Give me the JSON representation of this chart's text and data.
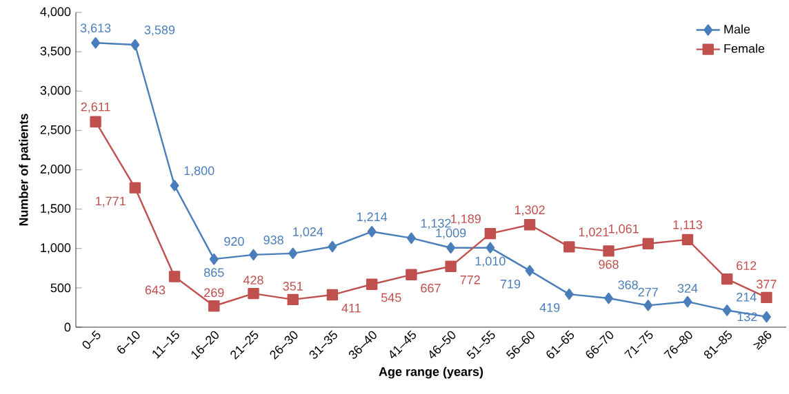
{
  "chart_data": {
    "type": "line",
    "xlabel": "Age range (years)",
    "ylabel": "Number of patients",
    "categories": [
      "0–5",
      "6–10",
      "11–15",
      "16–20",
      "21–25",
      "26–30",
      "31–35",
      "36–40",
      "41–45",
      "46–50",
      "51–55",
      "56–60",
      "61–65",
      "66–70",
      "71–75",
      "76–80",
      "81–85",
      "≥86"
    ],
    "ylim": [
      0,
      4000
    ],
    "yticks": [
      {
        "value": 0,
        "label": "0"
      },
      {
        "value": 500,
        "label": "500"
      },
      {
        "value": 1000,
        "label": "1,000"
      },
      {
        "value": 1500,
        "label": "1,500"
      },
      {
        "value": 2000,
        "label": "2,000"
      },
      {
        "value": 2500,
        "label": "2,500"
      },
      {
        "value": 3000,
        "label": "3,000"
      },
      {
        "value": 3500,
        "label": "3,500"
      },
      {
        "value": 4000,
        "label": "4,000"
      }
    ],
    "grid": false,
    "legend": "top right",
    "line_style": "solid",
    "series": [
      {
        "name": "Male",
        "color": "#4a7ebb",
        "marker": "diamond",
        "values": [
          3613,
          3589,
          1800,
          865,
          920,
          938,
          1024,
          1214,
          1132,
          1009,
          1010,
          719,
          419,
          368,
          277,
          324,
          214,
          132
        ],
        "value_labels": [
          "3,613",
          "3,589",
          "1,800",
          "865",
          "920",
          "938",
          "1,024",
          "1,214",
          "1,132",
          "1,009",
          "1,010",
          "719",
          "419",
          "368",
          "277",
          "324",
          "214",
          "132"
        ]
      },
      {
        "name": "Female",
        "color": "#c0504d",
        "marker": "square",
        "values": [
          2611,
          1771,
          643,
          269,
          428,
          351,
          411,
          545,
          667,
          772,
          1189,
          1302,
          1021,
          968,
          1061,
          1113,
          612,
          377
        ],
        "value_labels": [
          "2,611",
          "1,771",
          "643",
          "269",
          "428",
          "351",
          "411",
          "545",
          "667",
          "772",
          "1,189",
          "1,302",
          "1,021",
          "968",
          "1,061",
          "1,113",
          "612",
          "377"
        ]
      }
    ]
  }
}
